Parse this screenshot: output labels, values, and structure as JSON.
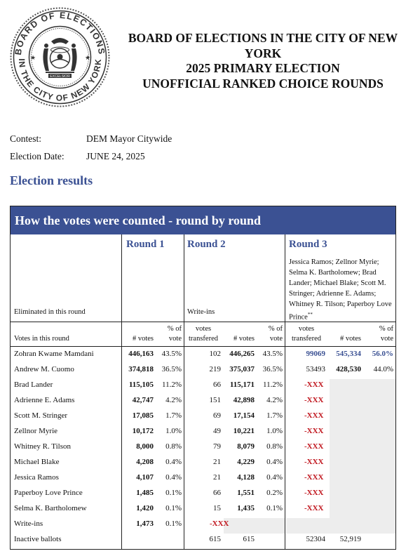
{
  "seal": {
    "top_text": "BOARD OF ELECTIONS",
    "bottom_text": "IN THE CITY OF NEW YORK",
    "motto": "EXCELSIOR"
  },
  "header": {
    "line1": "BOARD OF ELECTIONS IN THE CITY OF NEW",
    "line2": "YORK",
    "line3": "2025 PRIMARY ELECTION",
    "line4": "UNOFFICIAL RANKED CHOICE ROUNDS"
  },
  "contest": {
    "label": "Contest:",
    "value": "DEM Mayor Citywide"
  },
  "election_date": {
    "label": "Election Date:",
    "value": "JUNE 24, 2025"
  },
  "section_title": "Election results",
  "table": {
    "title": "How the votes were counted - round by round",
    "round1": "Round 1",
    "round2": "Round 2",
    "round3": "Round 3",
    "eliminated_label": "Eliminated in this round",
    "r2_eliminated": "Write-ins",
    "r3_eliminated": "Jessica Ramos; Zellnor Myrie; Selma K. Bartholomew; Brad Lander; Michael Blake; Scott M. Stringer; Adrienne E. Adams; Whitney R. Tilson; Paperboy Love Prince",
    "r3_note": "**",
    "votes_label": "Votes in this round",
    "col_votes": "# votes",
    "col_pct_a": "% of",
    "col_pct_b": "vote",
    "col_tr_a": "votes",
    "col_tr_b": "transfered",
    "col_tr_c": "transfered",
    "rows": [
      {
        "name": "Zohran Kwame Mamdani",
        "r1v": "446,163",
        "r1p": "43.5%",
        "r2t": "102",
        "r2v": "446,265",
        "r2p": "43.5%",
        "r3t": "99069",
        "r3v": "545,334",
        "r3p": "56.0%"
      },
      {
        "name": "Andrew M. Cuomo",
        "r1v": "374,818",
        "r1p": "36.5%",
        "r2t": "219",
        "r2v": "375,037",
        "r2p": "36.5%",
        "r3t": "53493",
        "r3v": "428,530",
        "r3p": "44.0%"
      },
      {
        "name": "Brad Lander",
        "r1v": "115,105",
        "r1p": "11.2%",
        "r2t": "66",
        "r2v": "115,171",
        "r2p": "11.2%",
        "r3t": "-XXX",
        "r3v": "",
        "r3p": ""
      },
      {
        "name": "Adrienne E. Adams",
        "r1v": "42,747",
        "r1p": "4.2%",
        "r2t": "151",
        "r2v": "42,898",
        "r2p": "4.2%",
        "r3t": "-XXX",
        "r3v": "",
        "r3p": ""
      },
      {
        "name": "Scott M. Stringer",
        "r1v": "17,085",
        "r1p": "1.7%",
        "r2t": "69",
        "r2v": "17,154",
        "r2p": "1.7%",
        "r3t": "-XXX",
        "r3v": "",
        "r3p": ""
      },
      {
        "name": "Zellnor Myrie",
        "r1v": "10,172",
        "r1p": "1.0%",
        "r2t": "49",
        "r2v": "10,221",
        "r2p": "1.0%",
        "r3t": "-XXX",
        "r3v": "",
        "r3p": ""
      },
      {
        "name": "Whitney R. Tilson",
        "r1v": "8,000",
        "r1p": "0.8%",
        "r2t": "79",
        "r2v": "8,079",
        "r2p": "0.8%",
        "r3t": "-XXX",
        "r3v": "",
        "r3p": ""
      },
      {
        "name": "Michael Blake",
        "r1v": "4,208",
        "r1p": "0.4%",
        "r2t": "21",
        "r2v": "4,229",
        "r2p": "0.4%",
        "r3t": "-XXX",
        "r3v": "",
        "r3p": ""
      },
      {
        "name": "Jessica Ramos",
        "r1v": "4,107",
        "r1p": "0.4%",
        "r2t": "21",
        "r2v": "4,128",
        "r2p": "0.4%",
        "r3t": "-XXX",
        "r3v": "",
        "r3p": ""
      },
      {
        "name": "Paperboy Love Prince",
        "r1v": "1,485",
        "r1p": "0.1%",
        "r2t": "66",
        "r2v": "1,551",
        "r2p": "0.2%",
        "r3t": "-XXX",
        "r3v": "",
        "r3p": ""
      },
      {
        "name": "Selma K. Bartholomew",
        "r1v": "1,420",
        "r1p": "0.1%",
        "r2t": "15",
        "r2v": "1,435",
        "r2p": "0.1%",
        "r3t": "-XXX",
        "r3v": "",
        "r3p": ""
      },
      {
        "name": "Write-ins",
        "r1v": "1,473",
        "r1p": "0.1%",
        "r2t": "-XXX",
        "r2v": "",
        "r2p": "",
        "r3t": "",
        "r3v": "",
        "r3p": ""
      },
      {
        "name": "Inactive ballots",
        "r1v": "",
        "r1p": "",
        "r2t": "615",
        "r2v": "615",
        "r2p": "",
        "r3t": "52304",
        "r3v": "52,919",
        "r3p": ""
      }
    ]
  }
}
